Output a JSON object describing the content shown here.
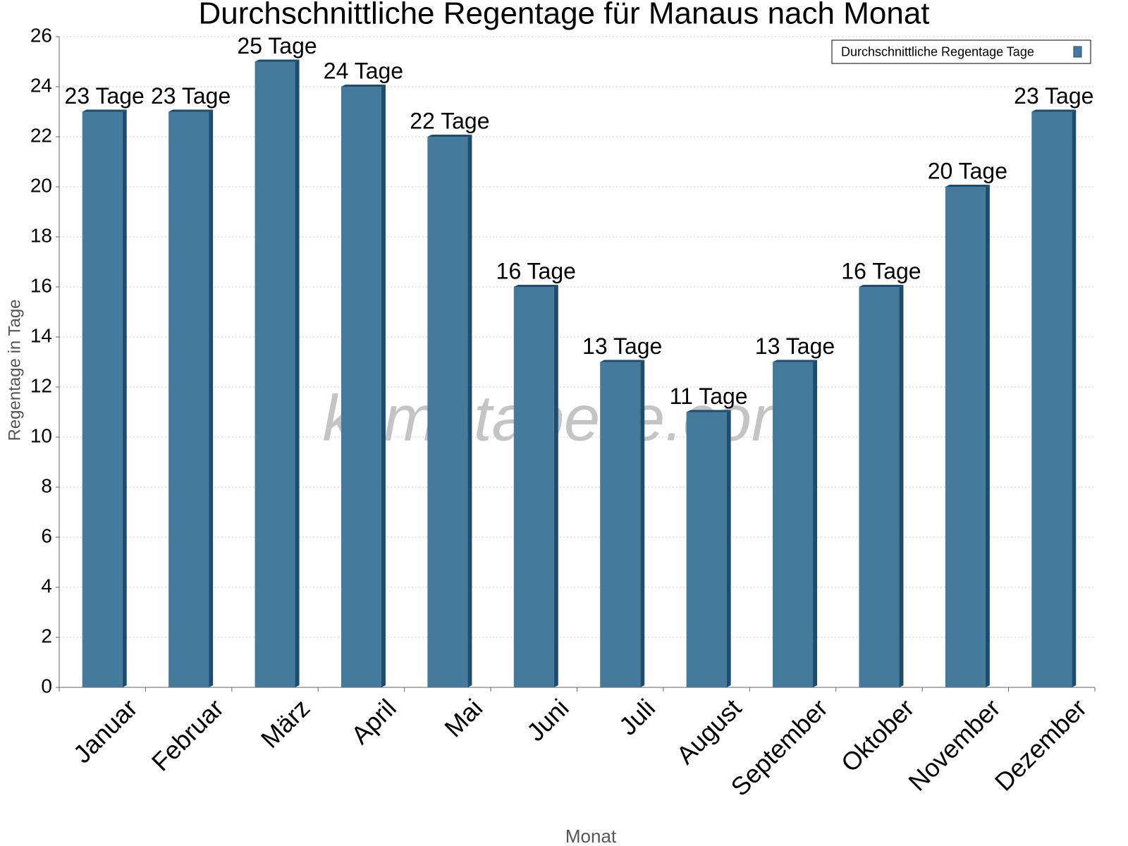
{
  "chart_data": {
    "type": "bar",
    "title": "Durchschnittliche Regentage für Manaus nach Monat",
    "x_label": "Monat",
    "y_label": "Regentage in Tage",
    "watermark": "klimatabelle.com",
    "categories": [
      "Januar",
      "Februar",
      "März",
      "April",
      "Mai",
      "Juni",
      "Juli",
      "August",
      "September",
      "Oktober",
      "November",
      "Dezember"
    ],
    "series": [
      {
        "name": "Durchschnittliche Regentage Tage",
        "color": "#467a9c",
        "values": [
          23,
          23,
          25,
          24,
          22,
          16,
          13,
          11,
          13,
          16,
          20,
          23
        ],
        "value_labels": [
          "23 Tage",
          "23 Tage",
          "25 Tage",
          "24 Tage",
          "22 Tage",
          "16 Tage",
          "13 Tage",
          "11 Tage",
          "13 Tage",
          "16 Tage",
          "20 Tage",
          "23 Tage"
        ]
      }
    ],
    "ylim": [
      0,
      26
    ],
    "yticks": [
      0,
      2,
      4,
      6,
      8,
      10,
      12,
      14,
      16,
      18,
      20,
      22,
      24,
      26
    ],
    "grid": true,
    "legend": "upper right"
  }
}
